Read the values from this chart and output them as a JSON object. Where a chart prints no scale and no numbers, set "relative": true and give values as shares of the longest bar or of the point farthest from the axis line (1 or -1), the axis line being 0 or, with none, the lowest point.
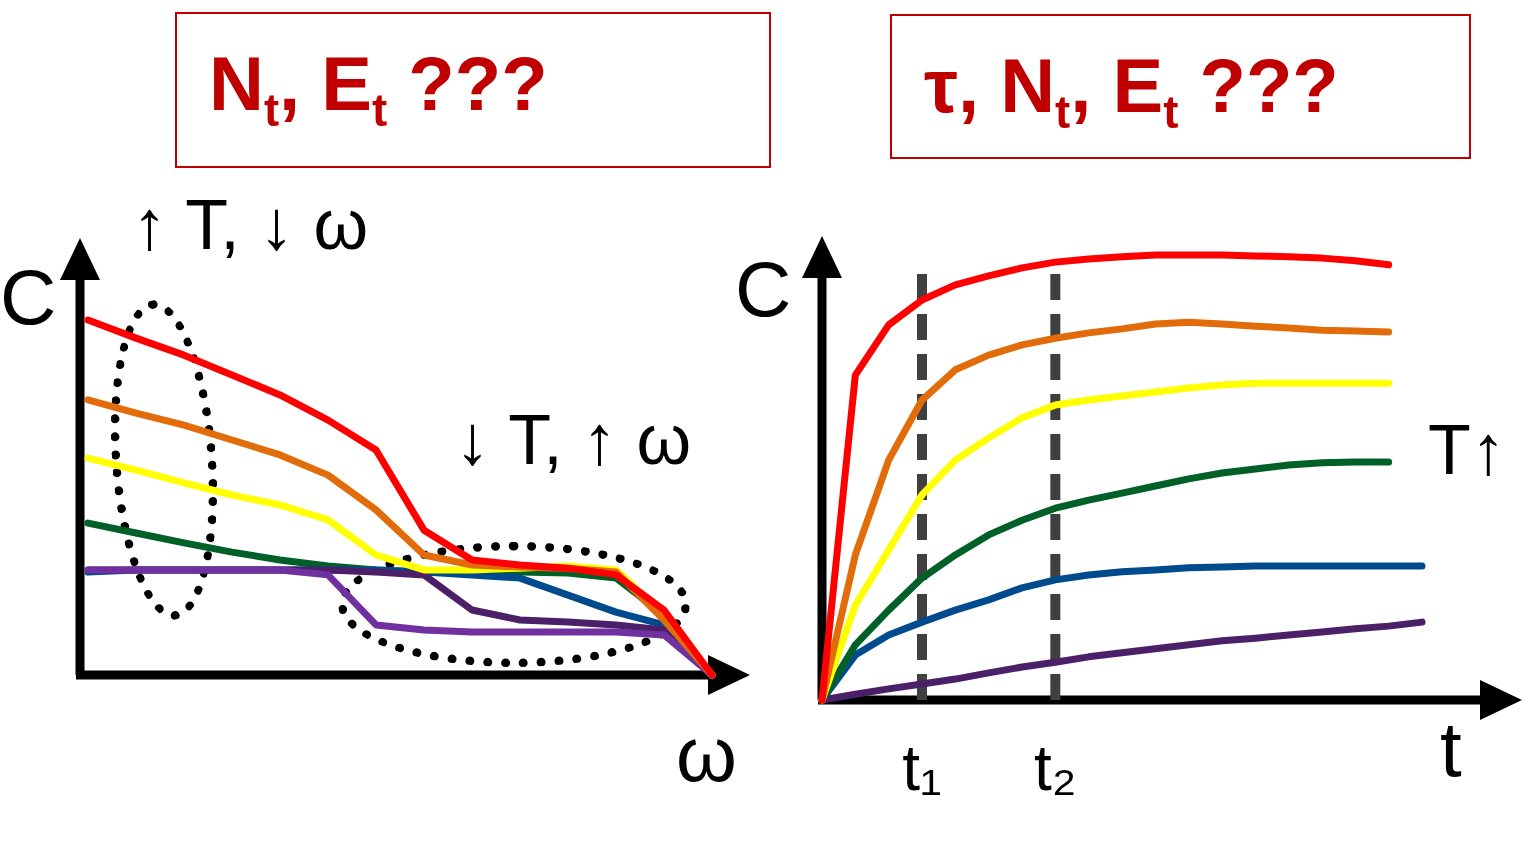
{
  "chart_data": [
    {
      "type": "line",
      "title": "N$_{t}$, E$_{t}$ ???",
      "xlabel": "ω",
      "ylabel": "C",
      "relative": true,
      "legend": false,
      "categories": [
        null,
        null,
        null,
        null,
        null,
        null,
        null,
        null,
        null,
        null,
        null,
        null,
        null,
        null
      ],
      "annotations": [
        "↑ T, ↓ ω",
        "↓ T, ↑ ω"
      ],
      "series": [
        {
          "color": "#ff0000",
          "values": [
            1.0,
            0.949,
            0.901,
            0.845,
            0.789,
            0.718,
            0.634,
            0.408,
            0.324,
            0.31,
            0.301,
            0.282,
            0.183,
            0
          ]
        },
        {
          "color": "#e36c0a",
          "values": [
            0.775,
            0.738,
            0.704,
            0.662,
            0.62,
            0.563,
            0.465,
            0.338,
            0.31,
            0.304,
            0.301,
            0.29,
            0.155,
            0
          ]
        },
        {
          "color": "#ffff00",
          "values": [
            0.611,
            0.577,
            0.541,
            0.507,
            0.479,
            0.437,
            0.338,
            0.296,
            0.296,
            0.301,
            0.307,
            0.296,
            0.169,
            0
          ]
        },
        {
          "color": "#7030a0",
          "values": [
            0.296,
            0.296,
            0.296,
            0.296,
            0.296,
            0.282,
            0.141,
            0.127,
            0.121,
            0.121,
            0.121,
            0.121,
            0.113,
            0
          ]
        },
        {
          "color": "#4b2069",
          "values": [
            0.296,
            0.296,
            0.296,
            0.296,
            0.296,
            0.296,
            0.29,
            0.282,
            0.183,
            0.155,
            0.149,
            0.141,
            0.127,
            0
          ]
        },
        {
          "color": "#004b8d",
          "values": [
            0.29,
            0.296,
            0.296,
            0.296,
            0.296,
            0.296,
            0.296,
            0.29,
            0.282,
            0.273,
            0.225,
            0.177,
            0.141,
            0
          ]
        },
        {
          "color": "#006028",
          "values": [
            0.428,
            0.4,
            0.372,
            0.346,
            0.324,
            0.307,
            0.296,
            0.29,
            0.29,
            0.29,
            0.287,
            0.273,
            0.169,
            0
          ]
        }
      ]
    },
    {
      "type": "line",
      "title": "τ, N$_{t}$, E$_{t}$ ???",
      "xlabel": "t",
      "ylabel": "C",
      "relative": true,
      "legend": false,
      "categories": [
        null,
        null,
        null,
        "t₁",
        null,
        null,
        null,
        "t₂",
        null,
        null,
        null,
        null,
        null,
        null,
        null,
        null,
        null,
        null,
        null
      ],
      "annotations": [
        "T↑"
      ],
      "ref_lines": [
        {
          "axis": "x",
          "value": "t₁",
          "color": "#404040",
          "line_style": "dashed"
        },
        {
          "axis": "x",
          "value": "t₂",
          "color": "#404040",
          "line_style": "dashed"
        }
      ],
      "series": [
        {
          "color": "#ff0000",
          "values": [
            0,
            0.73,
            0.843,
            0.899,
            0.933,
            0.953,
            0.971,
            0.984,
            0.991,
            0.996,
            1,
            1,
            1,
            0.998,
            0.996,
            0.993,
            0.987,
            0.978,
            null
          ]
        },
        {
          "color": "#e36c0a",
          "values": [
            0,
            0.326,
            0.539,
            0.674,
            0.742,
            0.775,
            0.798,
            0.813,
            0.825,
            0.834,
            0.845,
            0.849,
            0.845,
            0.84,
            0.836,
            0.831,
            0.829,
            0.827,
            null
          ]
        },
        {
          "color": "#ffff00",
          "values": [
            0,
            0.213,
            0.337,
            0.461,
            0.539,
            0.589,
            0.634,
            0.663,
            0.674,
            0.683,
            0.692,
            0.701,
            0.708,
            0.712,
            0.712,
            0.712,
            0.712,
            0.712,
            null
          ]
        },
        {
          "color": "#006028",
          "values": [
            0,
            0.124,
            0.202,
            0.274,
            0.326,
            0.371,
            0.404,
            0.431,
            0.449,
            0.465,
            0.481,
            0.497,
            0.51,
            0.519,
            0.528,
            0.533,
            0.535,
            0.535,
            null
          ]
        },
        {
          "color": "#004b8d",
          "values": [
            0,
            0.101,
            0.146,
            0.175,
            0.202,
            0.225,
            0.252,
            0.27,
            0.281,
            0.288,
            0.292,
            0.297,
            0.299,
            0.301,
            0.301,
            0.301,
            0.301,
            0.301,
            0.301
          ]
        },
        {
          "color": "#4b2069",
          "values": [
            0,
            0.013,
            0.025,
            0.036,
            0.047,
            0.061,
            0.074,
            0.085,
            0.097,
            0.106,
            0.115,
            0.124,
            0.133,
            0.139,
            0.146,
            0.153,
            0.16,
            0.166,
            0.175
          ]
        }
      ]
    }
  ]
}
